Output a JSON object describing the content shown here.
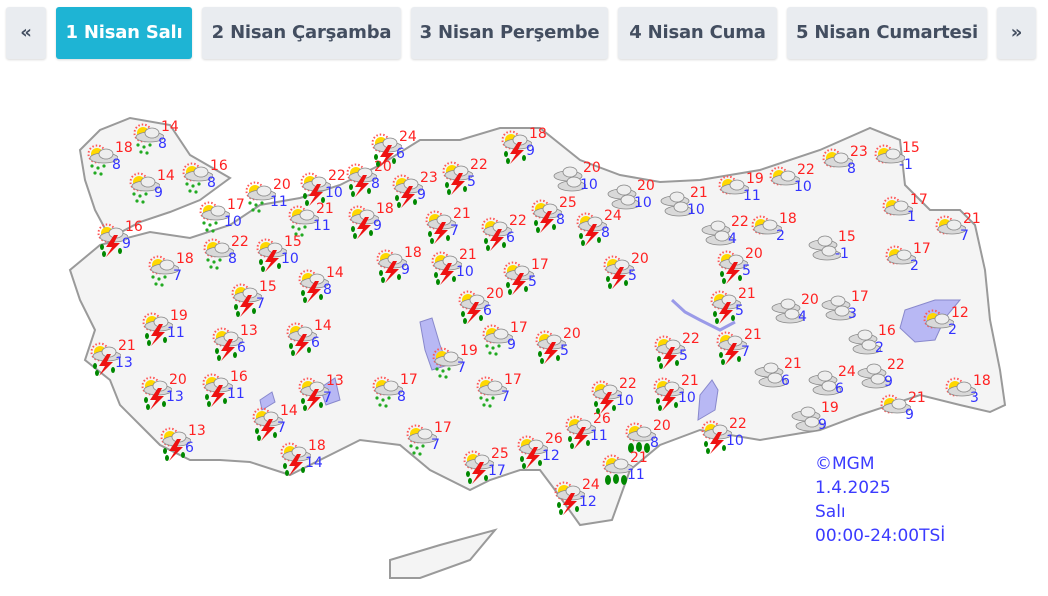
{
  "tabs": [
    {
      "label": "«",
      "active": false
    },
    {
      "label": "1 Nisan Salı",
      "active": true
    },
    {
      "label": "2 Nisan Çarşamba",
      "active": false
    },
    {
      "label": "3 Nisan Perşembe",
      "active": false
    },
    {
      "label": "4 Nisan Cuma",
      "active": false
    },
    {
      "label": "5 Nisan Cumartesi",
      "active": false
    },
    {
      "label": "»",
      "active": false
    }
  ],
  "colors": {
    "active_tab": "#1eb4d4",
    "max_temp": "#ff2222",
    "min_temp": "#3333ff",
    "lake": "#b8b8f4",
    "land": "#f4f4f4"
  },
  "legend": {
    "copyright": "©MGM",
    "date": "1.4.2025",
    "day": "Salı",
    "period": "00:00-24:00TSİ"
  },
  "forecasts": [
    {
      "icon": "rain",
      "max": "18",
      "min": "8"
    },
    {
      "icon": "rain",
      "max": "14",
      "min": "8"
    },
    {
      "icon": "rain",
      "max": "14",
      "min": "9"
    },
    {
      "icon": "rain",
      "max": "16",
      "min": "8"
    },
    {
      "icon": "rain",
      "max": "20",
      "min": "11"
    },
    {
      "icon": "rain",
      "max": "17",
      "min": "10"
    },
    {
      "icon": "rain",
      "max": "21",
      "min": "11"
    },
    {
      "icon": "thunderstorm",
      "max": "16",
      "min": "9"
    },
    {
      "icon": "rain",
      "max": "18",
      "min": "7"
    },
    {
      "icon": "rain",
      "max": "22",
      "min": "8"
    },
    {
      "icon": "thunderstorm",
      "max": "15",
      "min": "10"
    },
    {
      "icon": "thunderstorm",
      "max": "14",
      "min": "8"
    },
    {
      "icon": "thunderstorm",
      "max": "15",
      "min": "7"
    },
    {
      "icon": "thunderstorm",
      "max": "22",
      "min": "10"
    },
    {
      "icon": "thunderstorm",
      "max": "20",
      "min": "8"
    },
    {
      "icon": "thunderstorm",
      "max": "24",
      "min": "6"
    },
    {
      "icon": "thunderstorm",
      "max": "23",
      "min": "9"
    },
    {
      "icon": "thunderstorm",
      "max": "18",
      "min": "9"
    },
    {
      "icon": "thunderstorm",
      "max": "22",
      "min": "5"
    },
    {
      "icon": "thunderstorm",
      "max": "18",
      "min": "9"
    },
    {
      "icon": "thunderstorm",
      "max": "21",
      "min": "7"
    },
    {
      "icon": "thunderstorm",
      "max": "22",
      "min": "6"
    },
    {
      "icon": "thunderstorm",
      "max": "25",
      "min": "8"
    },
    {
      "icon": "cloudy",
      "max": "20",
      "min": "10"
    },
    {
      "icon": "cloudy",
      "max": "20",
      "min": "10"
    },
    {
      "icon": "cloudy",
      "max": "21",
      "min": "10"
    },
    {
      "icon": "partly-cloudy",
      "max": "19",
      "min": "11"
    },
    {
      "icon": "partly-cloudy",
      "max": "22",
      "min": "10"
    },
    {
      "icon": "partly-cloudy",
      "max": "23",
      "min": "8"
    },
    {
      "icon": "partly-cloudy",
      "max": "15",
      "min": "-1"
    },
    {
      "icon": "partly-cloudy",
      "max": "17",
      "min": "1"
    },
    {
      "icon": "partly-cloudy",
      "max": "21",
      "min": "7"
    },
    {
      "icon": "cloudy",
      "max": "22",
      "min": "4"
    },
    {
      "icon": "partly-cloudy",
      "max": "18",
      "min": "2"
    },
    {
      "icon": "cloudy",
      "max": "15",
      "min": "-1"
    },
    {
      "icon": "partly-cloudy",
      "max": "17",
      "min": "2"
    },
    {
      "icon": "thunderstorm",
      "max": "24",
      "min": "8"
    },
    {
      "icon": "thunderstorm",
      "max": "18",
      "min": "9"
    },
    {
      "icon": "thunderstorm",
      "max": "21",
      "min": "10"
    },
    {
      "icon": "thunderstorm",
      "max": "17",
      "min": "5"
    },
    {
      "icon": "thunderstorm",
      "max": "20",
      "min": "5"
    },
    {
      "icon": "thunderstorm",
      "max": "20",
      "min": "5"
    },
    {
      "icon": "thunderstorm",
      "max": "20",
      "min": "6"
    },
    {
      "icon": "thunderstorm",
      "max": "21",
      "min": "5"
    },
    {
      "icon": "cloudy",
      "max": "20",
      "min": "4"
    },
    {
      "icon": "cloudy",
      "max": "17",
      "min": "3"
    },
    {
      "icon": "partly-cloudy",
      "max": "12",
      "min": "2"
    },
    {
      "icon": "cloudy",
      "max": "16",
      "min": "2"
    },
    {
      "icon": "rain",
      "max": "17",
      "min": "9"
    },
    {
      "icon": "rain",
      "max": "19",
      "min": "7"
    },
    {
      "icon": "thunderstorm",
      "max": "20",
      "min": "5"
    },
    {
      "icon": "thunderstorm",
      "max": "22",
      "min": "5"
    },
    {
      "icon": "thunderstorm",
      "max": "21",
      "min": "7"
    },
    {
      "icon": "cloudy",
      "max": "21",
      "min": "6"
    },
    {
      "icon": "cloudy",
      "max": "24",
      "min": "6"
    },
    {
      "icon": "cloudy",
      "max": "22",
      "min": "9"
    },
    {
      "icon": "partly-cloudy",
      "max": "21",
      "min": "9"
    },
    {
      "icon": "partly-cloudy",
      "max": "18",
      "min": "3"
    },
    {
      "icon": "cloudy",
      "max": "19",
      "min": "9"
    },
    {
      "icon": "thunderstorm",
      "max": "19",
      "min": "11"
    },
    {
      "icon": "thunderstorm",
      "max": "13",
      "min": "6"
    },
    {
      "icon": "thunderstorm",
      "max": "14",
      "min": "6"
    },
    {
      "icon": "thunderstorm",
      "max": "21",
      "min": "13"
    },
    {
      "icon": "thunderstorm",
      "max": "20",
      "min": "13"
    },
    {
      "icon": "thunderstorm",
      "max": "16",
      "min": "11"
    },
    {
      "icon": "thunderstorm",
      "max": "13",
      "min": "7"
    },
    {
      "icon": "rain",
      "max": "17",
      "min": "8"
    },
    {
      "icon": "rain",
      "max": "17",
      "min": "7"
    },
    {
      "icon": "thunderstorm",
      "max": "14",
      "min": "7"
    },
    {
      "icon": "thunderstorm",
      "max": "13",
      "min": "6"
    },
    {
      "icon": "thunderstorm",
      "max": "18",
      "min": "14"
    },
    {
      "icon": "rain",
      "max": "17",
      "min": "7"
    },
    {
      "icon": "thunderstorm",
      "max": "25",
      "min": "17"
    },
    {
      "icon": "thunderstorm",
      "max": "26",
      "min": "12"
    },
    {
      "icon": "thunderstorm",
      "max": "26",
      "min": "11"
    },
    {
      "icon": "thunderstorm",
      "max": "22",
      "min": "10"
    },
    {
      "icon": "thunderstorm",
      "max": "21",
      "min": "10"
    },
    {
      "icon": "heavy-rain",
      "max": "20",
      "min": "8"
    },
    {
      "icon": "thunderstorm",
      "max": "22",
      "min": "10"
    },
    {
      "icon": "heavy-rain",
      "max": "21",
      "min": "11"
    },
    {
      "icon": "thunderstorm",
      "max": "24",
      "min": "12"
    }
  ]
}
